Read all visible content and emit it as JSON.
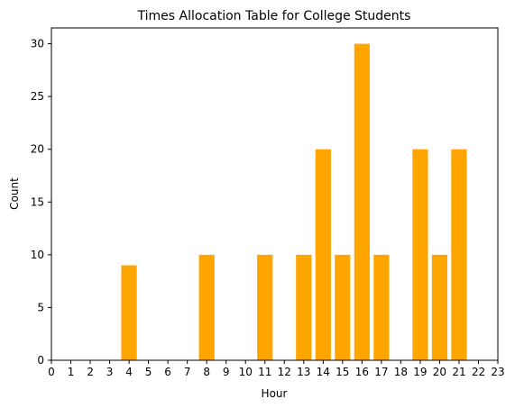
{
  "chart_data": {
    "type": "bar",
    "title": "Times Allocation Table for College Students",
    "xlabel": "Hour",
    "ylabel": "Count",
    "x": [
      4,
      8,
      11,
      13,
      14,
      15,
      16,
      17,
      19,
      20,
      21
    ],
    "values": [
      9,
      10,
      10,
      10,
      20,
      10,
      30,
      10,
      20,
      10,
      20
    ],
    "xticks": [
      "0",
      "1",
      "2",
      "3",
      "4",
      "5",
      "6",
      "7",
      "8",
      "9",
      "10",
      "11",
      "12",
      "13",
      "14",
      "15",
      "16",
      "17",
      "18",
      "19",
      "20",
      "21",
      "22",
      "23"
    ],
    "yticks": [
      "0",
      "5",
      "10",
      "15",
      "20",
      "25",
      "30"
    ],
    "xlim": [
      0,
      23
    ],
    "ylim": [
      0,
      31.5
    ],
    "bar_color": "#ffa500",
    "grid": false,
    "legend": false
  }
}
